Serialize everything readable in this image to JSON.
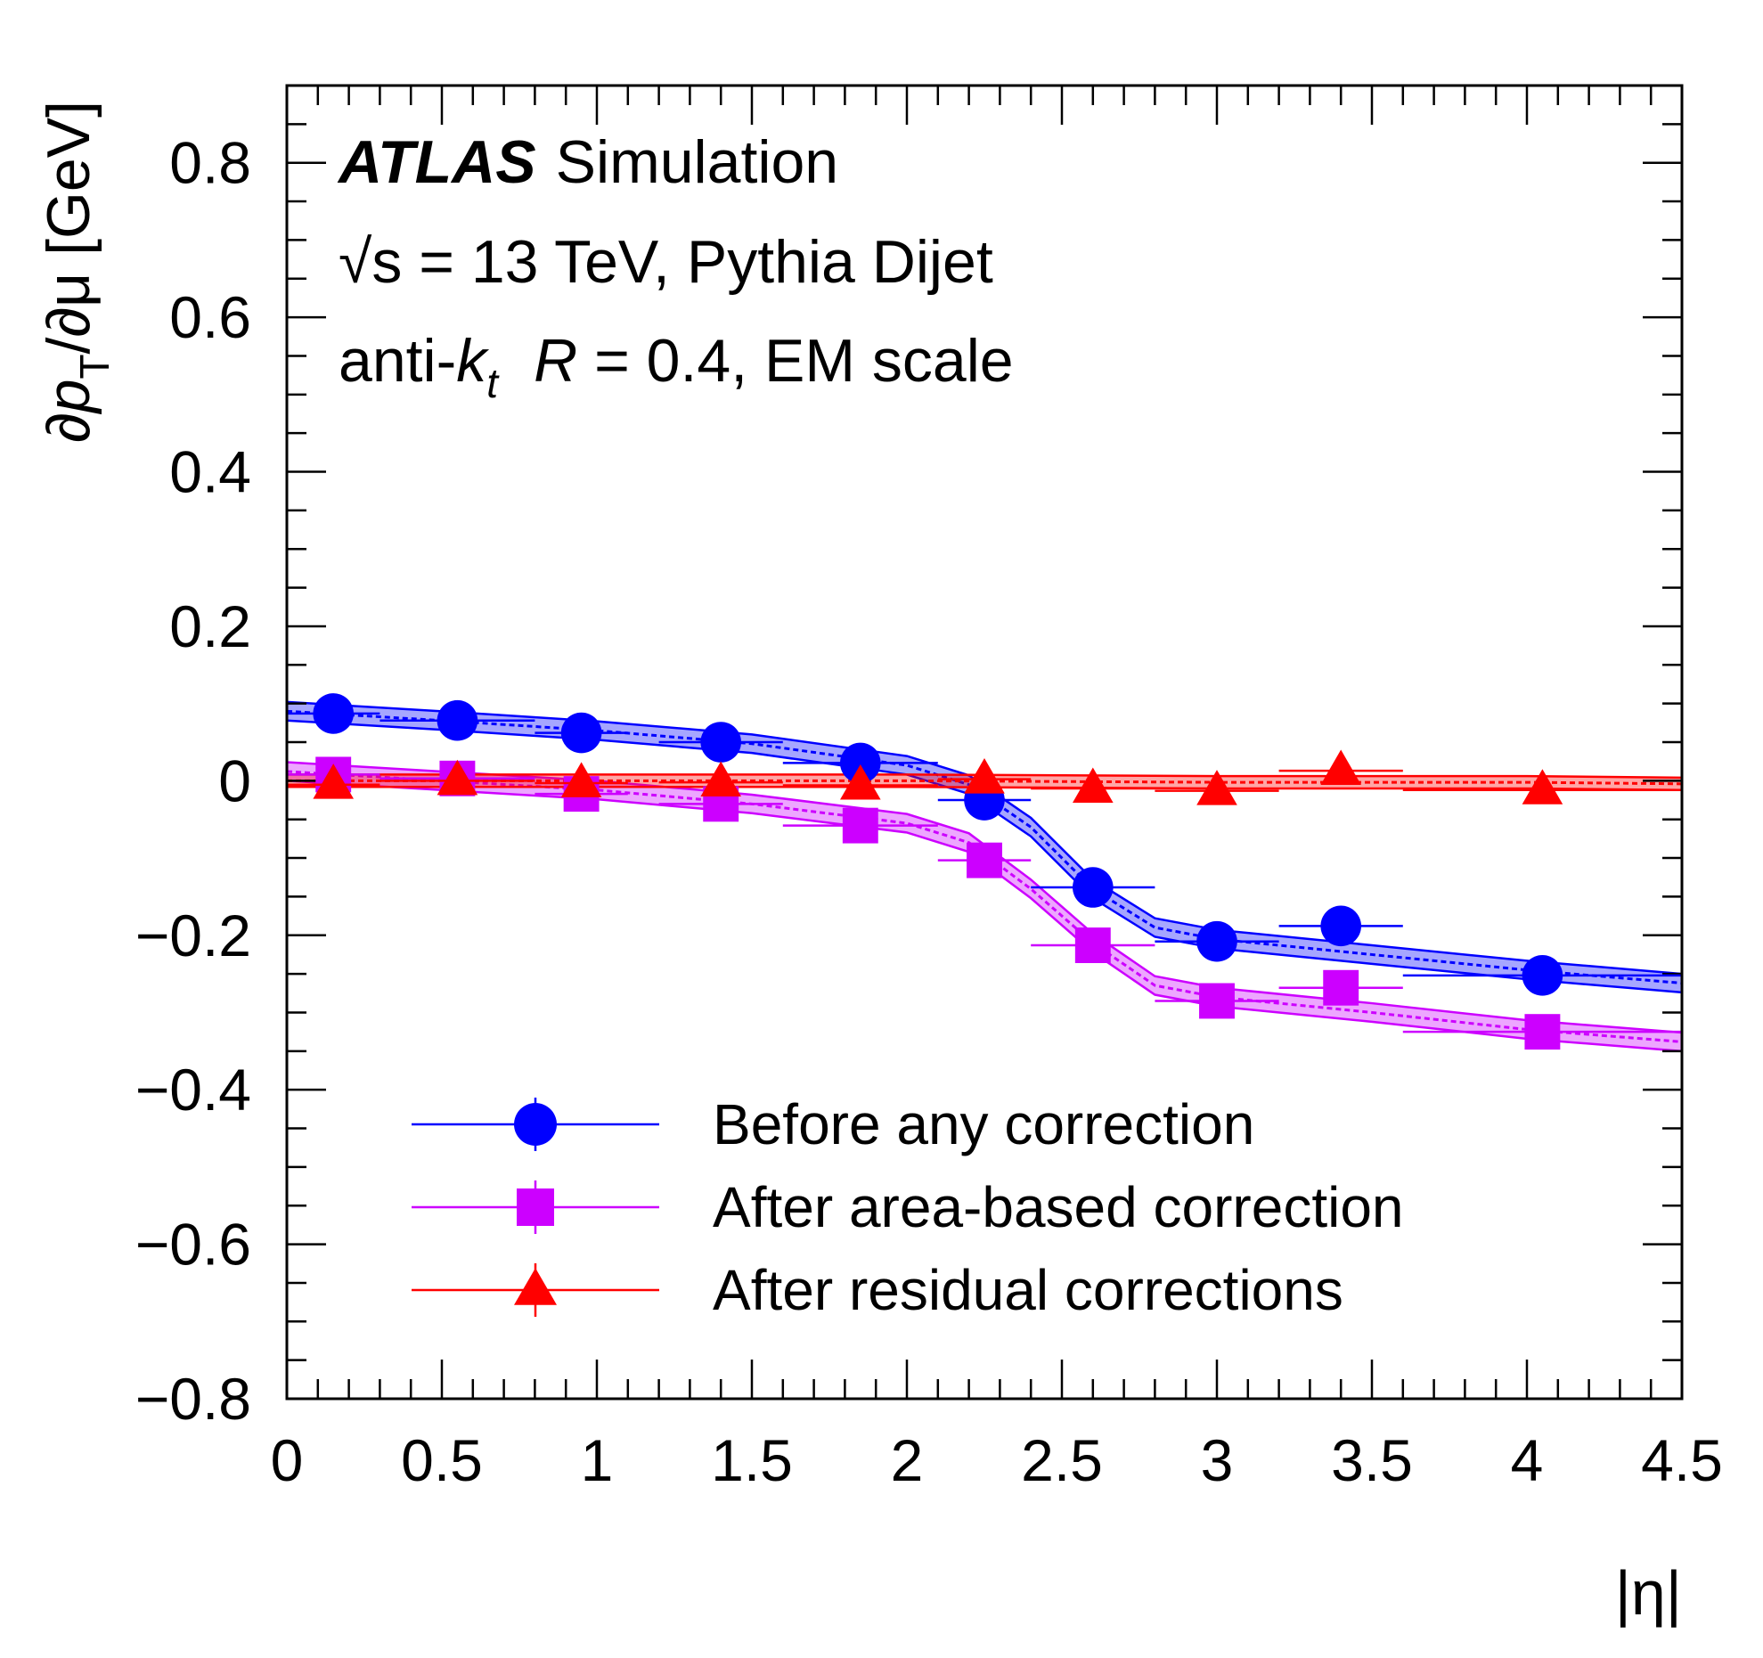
{
  "chart_data": {
    "type": "scatter",
    "annotation": {
      "experiment": "ATLAS",
      "experiment_suffix": "Simulation",
      "line2": "√s = 13 TeV, Pythia Dijet",
      "line3_prefix": "anti-",
      "line3_k": "k",
      "line3_t": "t",
      "line3_R": "R",
      "line3_suffix": " = 0.4, EM scale"
    },
    "xlabel": "|η|",
    "ylabel": "∂p_T/∂μ [GeV]",
    "ylabel_parts": {
      "pre": "∂",
      "p": "p",
      "sub": "T",
      "post": "/∂μ [GeV]"
    },
    "xlim": [
      0,
      4.5
    ],
    "ylim": [
      -0.8,
      0.9
    ],
    "x_ticks": [
      "0",
      "0.5",
      "1",
      "1.5",
      "2",
      "2.5",
      "3",
      "3.5",
      "4",
      "4.5"
    ],
    "x_tick_values": [
      0,
      0.5,
      1,
      1.5,
      2,
      2.5,
      3,
      3.5,
      4,
      4.5
    ],
    "y_ticks": [
      "0.8",
      "0.6",
      "0.4",
      "0.2",
      "0",
      "−0.2",
      "−0.4",
      "−0.6",
      "−0.8"
    ],
    "y_tick_values": [
      0.8,
      0.6,
      0.4,
      0.2,
      0,
      -0.2,
      -0.4,
      -0.6,
      -0.8
    ],
    "grid": false,
    "legend_position": "bottom-center",
    "series": [
      {
        "name": "Before any correction",
        "color": "#0000ff",
        "marker": "circle",
        "points": [
          {
            "x": 0.15,
            "xerr": 0.15,
            "y": 0.087
          },
          {
            "x": 0.55,
            "xerr": 0.25,
            "y": 0.078
          },
          {
            "x": 0.95,
            "xerr": 0.15,
            "y": 0.062
          },
          {
            "x": 1.4,
            "xerr": 0.2,
            "y": 0.05
          },
          {
            "x": 1.85,
            "xerr": 0.25,
            "y": 0.023
          },
          {
            "x": 2.25,
            "xerr": 0.15,
            "y": -0.025
          },
          {
            "x": 2.6,
            "xerr": 0.2,
            "y": -0.138
          },
          {
            "x": 3.0,
            "xerr": 0.2,
            "y": -0.208
          },
          {
            "x": 3.4,
            "xerr": 0.2,
            "y": -0.188
          },
          {
            "x": 4.05,
            "xerr": 0.45,
            "y": -0.252
          }
        ],
        "band": [
          {
            "x": 0.0,
            "y": 0.09
          },
          {
            "x": 0.5,
            "y": 0.078
          },
          {
            "x": 1.0,
            "y": 0.065
          },
          {
            "x": 1.5,
            "y": 0.048
          },
          {
            "x": 2.0,
            "y": 0.02
          },
          {
            "x": 2.2,
            "y": -0.005
          },
          {
            "x": 2.4,
            "y": -0.06
          },
          {
            "x": 2.6,
            "y": -0.14
          },
          {
            "x": 2.8,
            "y": -0.19
          },
          {
            "x": 3.0,
            "y": -0.205
          },
          {
            "x": 3.5,
            "y": -0.225
          },
          {
            "x": 4.0,
            "y": -0.245
          },
          {
            "x": 4.5,
            "y": -0.262
          }
        ],
        "band_width": 0.012
      },
      {
        "name": "After area-based correction",
        "color": "#cc00ff",
        "marker": "square",
        "points": [
          {
            "x": 0.15,
            "xerr": 0.15,
            "y": 0.008
          },
          {
            "x": 0.55,
            "xerr": 0.25,
            "y": 0.003
          },
          {
            "x": 0.95,
            "xerr": 0.15,
            "y": -0.017
          },
          {
            "x": 1.4,
            "xerr": 0.2,
            "y": -0.03
          },
          {
            "x": 1.85,
            "xerr": 0.25,
            "y": -0.058
          },
          {
            "x": 2.25,
            "xerr": 0.15,
            "y": -0.103
          },
          {
            "x": 2.6,
            "xerr": 0.2,
            "y": -0.213
          },
          {
            "x": 3.0,
            "xerr": 0.2,
            "y": -0.285
          },
          {
            "x": 3.4,
            "xerr": 0.2,
            "y": -0.268
          },
          {
            "x": 4.05,
            "xerr": 0.45,
            "y": -0.325
          }
        ],
        "band": [
          {
            "x": 0.0,
            "y": 0.012
          },
          {
            "x": 0.5,
            "y": 0.0
          },
          {
            "x": 1.0,
            "y": -0.012
          },
          {
            "x": 1.5,
            "y": -0.03
          },
          {
            "x": 2.0,
            "y": -0.055
          },
          {
            "x": 2.2,
            "y": -0.08
          },
          {
            "x": 2.4,
            "y": -0.14
          },
          {
            "x": 2.6,
            "y": -0.21
          },
          {
            "x": 2.8,
            "y": -0.265
          },
          {
            "x": 3.0,
            "y": -0.28
          },
          {
            "x": 3.5,
            "y": -0.3
          },
          {
            "x": 4.0,
            "y": -0.322
          },
          {
            "x": 4.5,
            "y": -0.338
          }
        ],
        "band_width": 0.012
      },
      {
        "name": "After residual corrections",
        "color": "#ff0000",
        "marker": "triangle",
        "points": [
          {
            "x": 0.15,
            "xerr": 0.15,
            "y": -0.005
          },
          {
            "x": 0.55,
            "xerr": 0.25,
            "y": 0.0
          },
          {
            "x": 0.95,
            "xerr": 0.15,
            "y": -0.003
          },
          {
            "x": 1.4,
            "xerr": 0.2,
            "y": -0.002
          },
          {
            "x": 1.85,
            "xerr": 0.25,
            "y": -0.006
          },
          {
            "x": 2.25,
            "xerr": 0.15,
            "y": 0.002
          },
          {
            "x": 2.6,
            "xerr": 0.2,
            "y": -0.01
          },
          {
            "x": 3.0,
            "xerr": 0.2,
            "y": -0.013
          },
          {
            "x": 3.4,
            "xerr": 0.2,
            "y": 0.013
          },
          {
            "x": 4.05,
            "xerr": 0.45,
            "y": -0.012
          }
        ],
        "band": [
          {
            "x": 0.0,
            "y": 0.0
          },
          {
            "x": 1.0,
            "y": 0.0
          },
          {
            "x": 2.0,
            "y": 0.0
          },
          {
            "x": 3.0,
            "y": -0.002
          },
          {
            "x": 4.0,
            "y": -0.002
          },
          {
            "x": 4.5,
            "y": -0.004
          }
        ],
        "band_width": 0.008
      }
    ]
  }
}
